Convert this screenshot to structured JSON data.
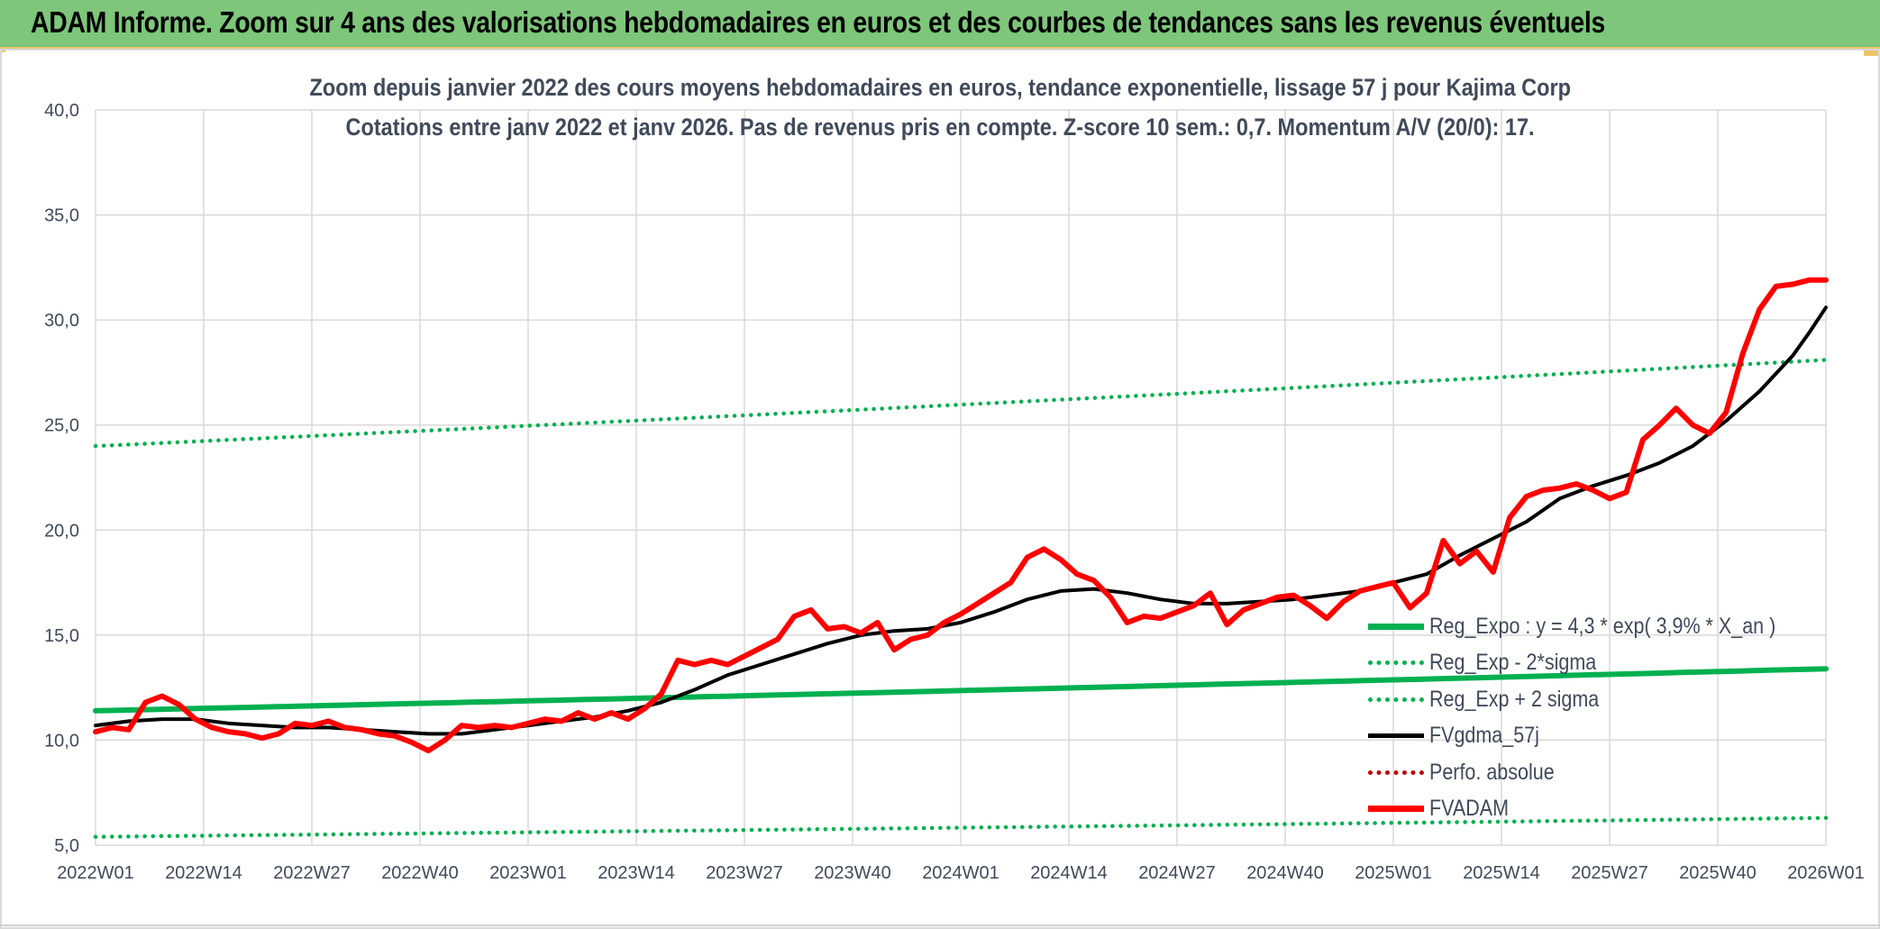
{
  "banner": {
    "title": "ADAM Informe. Zoom sur 4 ans des valorisations hebdomadaires en euros et des courbes de tendances sans les revenus éventuels"
  },
  "colors": {
    "banner_bg": "#7dc67a",
    "reg_expo": "#00b050",
    "fvgdma": "#000000",
    "fvadam": "#ff0000",
    "perfo": "#c00000",
    "grid": "#d9d9d9",
    "text": "#404a5a"
  },
  "chart_data": {
    "type": "line",
    "title": "Zoom depuis janvier 2022 des cours moyens hebdomadaires en euros, tendance exponentielle, lissage 57 j pour Kajima Corp",
    "subtitle": "Cotations entre janv 2022 et janv 2026. Pas de revenus pris en compte. Z-score 10 sem.: 0,7. Momentum A/V (20/0): 17.",
    "x_tick_labels": [
      "2022W01",
      "2022W14",
      "2022W27",
      "2022W40",
      "2023W01",
      "2023W14",
      "2023W27",
      "2023W40",
      "2024W01",
      "2024W14",
      "2024W27",
      "2024W40",
      "2025W01",
      "2025W14",
      "2025W27",
      "2025W40",
      "2026W01"
    ],
    "y_tick_labels": [
      "5,0",
      "10,0",
      "15,0",
      "20,0",
      "25,0",
      "30,0",
      "35,0",
      "40,0"
    ],
    "ylim": [
      5,
      40
    ],
    "x_range_weeks": [
      0,
      208
    ],
    "grid": true,
    "legend_position": "bottom-right",
    "series": [
      {
        "name": "Reg_Expo : y = 4,3 * exp( 3,9% *  X_an )",
        "style": "solid-thick",
        "color": "#00b050",
        "points": [
          [
            0,
            11.4
          ],
          [
            208,
            13.4
          ]
        ]
      },
      {
        "name": "Reg_Exp - 2*sigma",
        "style": "dotted",
        "color": "#00b050",
        "points": [
          [
            0,
            5.4
          ],
          [
            208,
            6.3
          ]
        ]
      },
      {
        "name": "Reg_Exp + 2 sigma",
        "style": "dotted",
        "color": "#00b050",
        "points": [
          [
            0,
            24.0
          ],
          [
            208,
            28.1
          ]
        ]
      },
      {
        "name": "FVgdma_57j",
        "style": "solid",
        "color": "#000000",
        "points": [
          [
            0,
            10.7
          ],
          [
            4,
            10.9
          ],
          [
            8,
            11.0
          ],
          [
            12,
            11.0
          ],
          [
            16,
            10.8
          ],
          [
            20,
            10.7
          ],
          [
            24,
            10.6
          ],
          [
            28,
            10.6
          ],
          [
            32,
            10.5
          ],
          [
            36,
            10.4
          ],
          [
            40,
            10.3
          ],
          [
            44,
            10.3
          ],
          [
            48,
            10.5
          ],
          [
            52,
            10.7
          ],
          [
            56,
            10.9
          ],
          [
            60,
            11.1
          ],
          [
            64,
            11.4
          ],
          [
            68,
            11.8
          ],
          [
            72,
            12.4
          ],
          [
            76,
            13.1
          ],
          [
            80,
            13.6
          ],
          [
            84,
            14.1
          ],
          [
            88,
            14.6
          ],
          [
            92,
            15.0
          ],
          [
            96,
            15.2
          ],
          [
            100,
            15.3
          ],
          [
            104,
            15.6
          ],
          [
            108,
            16.1
          ],
          [
            112,
            16.7
          ],
          [
            116,
            17.1
          ],
          [
            120,
            17.2
          ],
          [
            124,
            17.0
          ],
          [
            128,
            16.7
          ],
          [
            132,
            16.5
          ],
          [
            136,
            16.5
          ],
          [
            140,
            16.6
          ],
          [
            144,
            16.7
          ],
          [
            148,
            16.9
          ],
          [
            152,
            17.1
          ],
          [
            156,
            17.5
          ],
          [
            160,
            17.9
          ],
          [
            164,
            18.8
          ],
          [
            168,
            19.6
          ],
          [
            172,
            20.4
          ],
          [
            176,
            21.5
          ],
          [
            180,
            22.1
          ],
          [
            184,
            22.6
          ],
          [
            188,
            23.2
          ],
          [
            192,
            24.0
          ],
          [
            196,
            25.2
          ],
          [
            200,
            26.6
          ],
          [
            204,
            28.3
          ],
          [
            206,
            29.4
          ],
          [
            208,
            30.6
          ]
        ]
      },
      {
        "name": "Perfo. absolue",
        "style": "dotted",
        "color": "#c00000",
        "points": []
      },
      {
        "name": "FVADAM",
        "style": "solid-thick",
        "color": "#ff0000",
        "points": [
          [
            0,
            10.4
          ],
          [
            2,
            10.6
          ],
          [
            4,
            10.5
          ],
          [
            6,
            11.8
          ],
          [
            8,
            12.1
          ],
          [
            10,
            11.7
          ],
          [
            12,
            11.0
          ],
          [
            14,
            10.6
          ],
          [
            16,
            10.4
          ],
          [
            18,
            10.3
          ],
          [
            20,
            10.1
          ],
          [
            22,
            10.3
          ],
          [
            24,
            10.8
          ],
          [
            26,
            10.7
          ],
          [
            28,
            10.9
          ],
          [
            30,
            10.6
          ],
          [
            32,
            10.5
          ],
          [
            34,
            10.3
          ],
          [
            36,
            10.2
          ],
          [
            38,
            9.9
          ],
          [
            40,
            9.5
          ],
          [
            42,
            10.0
          ],
          [
            44,
            10.7
          ],
          [
            46,
            10.6
          ],
          [
            48,
            10.7
          ],
          [
            50,
            10.6
          ],
          [
            52,
            10.8
          ],
          [
            54,
            11.0
          ],
          [
            56,
            10.9
          ],
          [
            58,
            11.3
          ],
          [
            60,
            11.0
          ],
          [
            62,
            11.3
          ],
          [
            64,
            11.0
          ],
          [
            66,
            11.5
          ],
          [
            68,
            12.2
          ],
          [
            70,
            13.8
          ],
          [
            72,
            13.6
          ],
          [
            74,
            13.8
          ],
          [
            76,
            13.6
          ],
          [
            78,
            14.0
          ],
          [
            80,
            14.4
          ],
          [
            82,
            14.8
          ],
          [
            84,
            15.9
          ],
          [
            86,
            16.2
          ],
          [
            88,
            15.3
          ],
          [
            90,
            15.4
          ],
          [
            92,
            15.1
          ],
          [
            94,
            15.6
          ],
          [
            96,
            14.3
          ],
          [
            98,
            14.8
          ],
          [
            100,
            15.0
          ],
          [
            102,
            15.6
          ],
          [
            104,
            16.0
          ],
          [
            106,
            16.5
          ],
          [
            108,
            17.0
          ],
          [
            110,
            17.5
          ],
          [
            112,
            18.7
          ],
          [
            114,
            19.1
          ],
          [
            116,
            18.6
          ],
          [
            118,
            17.9
          ],
          [
            120,
            17.6
          ],
          [
            122,
            16.8
          ],
          [
            124,
            15.6
          ],
          [
            126,
            15.9
          ],
          [
            128,
            15.8
          ],
          [
            130,
            16.1
          ],
          [
            132,
            16.4
          ],
          [
            134,
            17.0
          ],
          [
            136,
            15.5
          ],
          [
            138,
            16.2
          ],
          [
            140,
            16.5
          ],
          [
            142,
            16.8
          ],
          [
            144,
            16.9
          ],
          [
            146,
            16.4
          ],
          [
            148,
            15.8
          ],
          [
            150,
            16.6
          ],
          [
            152,
            17.1
          ],
          [
            154,
            17.3
          ],
          [
            156,
            17.5
          ],
          [
            158,
            16.3
          ],
          [
            160,
            17.0
          ],
          [
            162,
            19.5
          ],
          [
            164,
            18.4
          ],
          [
            166,
            19.0
          ],
          [
            168,
            18.0
          ],
          [
            170,
            20.6
          ],
          [
            172,
            21.6
          ],
          [
            174,
            21.9
          ],
          [
            176,
            22.0
          ],
          [
            178,
            22.2
          ],
          [
            180,
            21.9
          ],
          [
            182,
            21.5
          ],
          [
            184,
            21.8
          ],
          [
            186,
            24.3
          ],
          [
            188,
            25.0
          ],
          [
            190,
            25.8
          ],
          [
            192,
            25.0
          ],
          [
            194,
            24.6
          ],
          [
            196,
            25.6
          ],
          [
            198,
            28.4
          ],
          [
            200,
            30.5
          ],
          [
            202,
            31.6
          ],
          [
            204,
            31.7
          ],
          [
            206,
            31.9
          ],
          [
            208,
            31.9
          ]
        ]
      }
    ]
  }
}
